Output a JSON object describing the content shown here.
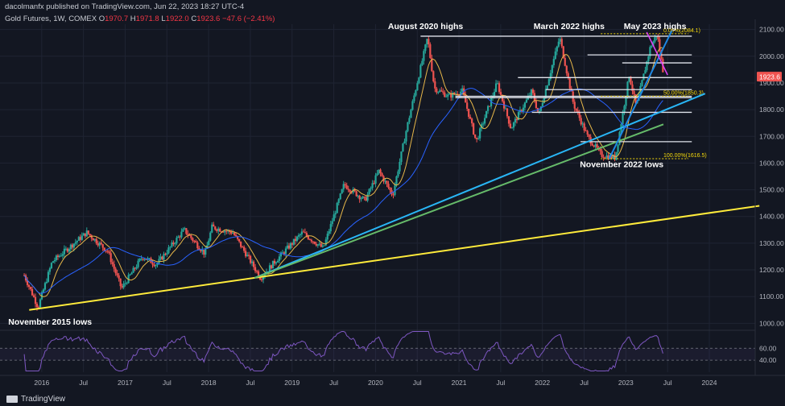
{
  "header": {
    "publisher": "dacolmanfx published on TradingView.com, Jun 22, 2023 18:27 UTC-4",
    "symbol": "Gold Futures, 1W, COMEX",
    "open_label": "O",
    "open": "1970.7",
    "high_label": "H",
    "high": "1971.8",
    "low_label": "L",
    "low": "1922.0",
    "close_label": "C",
    "close": "1923.6",
    "change": "−47.6 (−2.41%)"
  },
  "footer": {
    "brand": "TradingView"
  },
  "chart_data": {
    "type": "line",
    "x_ticks": [
      "2016",
      "Jul",
      "2017",
      "Jul",
      "2018",
      "Jul",
      "2019",
      "Jul",
      "2020",
      "Jul",
      "2021",
      "Jul",
      "2022",
      "Jul",
      "2023",
      "Jul",
      "2024"
    ],
    "y_ticks": [
      1000,
      1100,
      1200,
      1300,
      1400,
      1500,
      1600,
      1700,
      1800,
      1900,
      2000,
      2100
    ],
    "ylim": [
      980,
      2120
    ],
    "last_price": "1923.6",
    "colors": {
      "bg": "#131722",
      "up": "#26a69a",
      "down": "#ef5350",
      "ma_fast": "#e8b84a",
      "ma_slow": "#2962ff",
      "rsi": "#7e57c2",
      "trend_yellow": "#ffeb3b",
      "trend_cyan": "#29b6f6",
      "trend_green": "#66bb6a",
      "trend_blue": "#1e88e5",
      "trend_magenta": "#e040fb",
      "price_badge": "#ef5350"
    },
    "price_series": [
      [
        "2015-10",
        1180
      ],
      [
        "2015-12",
        1060
      ],
      [
        "2016-02",
        1230
      ],
      [
        "2016-07",
        1340
      ],
      [
        "2016-10",
        1270
      ],
      [
        "2016-12",
        1130
      ],
      [
        "2017-03",
        1250
      ],
      [
        "2017-05",
        1220
      ],
      [
        "2017-09",
        1350
      ],
      [
        "2017-12",
        1260
      ],
      [
        "2018-01",
        1360
      ],
      [
        "2018-04",
        1340
      ],
      [
        "2018-08",
        1170
      ],
      [
        "2018-10",
        1230
      ],
      [
        "2019-02",
        1340
      ],
      [
        "2019-05",
        1280
      ],
      [
        "2019-08",
        1520
      ],
      [
        "2019-11",
        1460
      ],
      [
        "2020-01",
        1570
      ],
      [
        "2020-03",
        1480
      ],
      [
        "2020-05",
        1730
      ],
      [
        "2020-08",
        2070
      ],
      [
        "2020-09",
        1880
      ],
      [
        "2020-11",
        1850
      ],
      [
        "2021-01",
        1870
      ],
      [
        "2021-03",
        1680
      ],
      [
        "2021-06",
        1900
      ],
      [
        "2021-08",
        1730
      ],
      [
        "2021-11",
        1870
      ],
      [
        "2021-12",
        1780
      ],
      [
        "2022-03",
        2070
      ],
      [
        "2022-05",
        1820
      ],
      [
        "2022-07",
        1700
      ],
      [
        "2022-09",
        1630
      ],
      [
        "2022-11",
        1620
      ],
      [
        "2023-01",
        1930
      ],
      [
        "2023-02",
        1810
      ],
      [
        "2023-04",
        2030
      ],
      [
        "2023-05",
        2084
      ],
      [
        "2023-06",
        1923.6
      ]
    ],
    "annotations": [
      {
        "text": "August 2020 highs",
        "x": "2020-08"
      },
      {
        "text": "March 2022 highs",
        "x": "2022-03"
      },
      {
        "text": "May 2023 highs",
        "x": "2023-05"
      },
      {
        "text": "November 2022 lows",
        "x": "2022-11"
      },
      {
        "text": "November 2015 lows",
        "x": "2015-12"
      }
    ],
    "fib_levels": [
      {
        "label": "0.00%(2084.1)",
        "value": 2084.1
      },
      {
        "label": "50.00%(1850.3)",
        "value": 1850.3
      },
      {
        "label": "100.00%(1616.5)",
        "value": 1616.5
      }
    ],
    "horizontal_levels": [
      2075,
      2005,
      1975,
      1920,
      1875,
      1850,
      1845,
      1790,
      1680
    ],
    "rsi": {
      "y_ticks": [
        60,
        40
      ]
    }
  }
}
